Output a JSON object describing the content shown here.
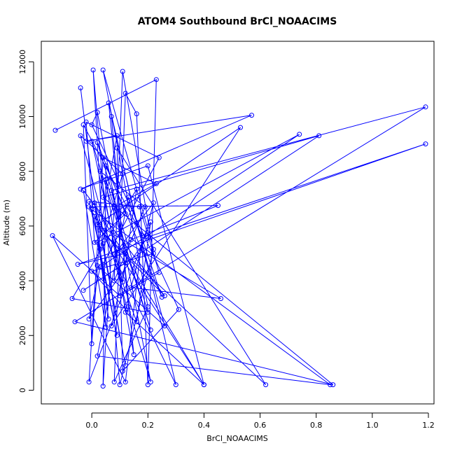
{
  "chart_data": {
    "type": "line",
    "title": "ATOM4 Southbound BrCl_NOAACIMS",
    "xlabel": "BrCl_NOAACIMS",
    "ylabel": "Altitude (m)",
    "xlim": [
      -0.18,
      1.22
    ],
    "ylim": [
      -500,
      12750
    ],
    "xticks": [
      0.0,
      0.2,
      0.4,
      0.6,
      0.8,
      1.0,
      1.2
    ],
    "xtick_labels": [
      "0.0",
      "0.2",
      "0.4",
      "0.6",
      "0.8",
      "1.0",
      "1.2"
    ],
    "yticks": [
      0,
      2000,
      4000,
      6000,
      8000,
      10000,
      12000
    ],
    "ytick_labels": [
      "0",
      "2000",
      "4000",
      "6000",
      "8000",
      "10000",
      "12000"
    ],
    "marker": "open-circle",
    "line_color": "#0000ff",
    "grid": false,
    "series": [
      {
        "points": [
          [
            -0.13,
            9500
          ],
          [
            0.23,
            11350
          ],
          [
            0.2,
            200
          ],
          [
            0.16,
            10100
          ],
          [
            0.12,
            10850
          ],
          [
            0.08,
            300
          ],
          [
            0.2,
            3050
          ],
          [
            0.04,
            11700
          ],
          [
            0.22,
            5150
          ],
          [
            0.1,
            200
          ],
          [
            0.005,
            11700
          ],
          [
            0.04,
            5350
          ],
          [
            0.12,
            900
          ],
          [
            0.01,
            6850
          ],
          [
            -0.04,
            11050
          ],
          [
            0.06,
            2600
          ],
          [
            0.01,
            6350
          ],
          [
            0.3,
            200
          ],
          [
            0.07,
            10000
          ],
          [
            0.13,
            3050
          ],
          [
            0.21,
            300
          ],
          [
            0.02,
            10150
          ],
          [
            0.0,
            9700
          ],
          [
            0.31,
            2950
          ],
          [
            0.11,
            700
          ],
          [
            0.09,
            8850
          ],
          [
            0.62,
            200
          ],
          [
            0.03,
            5850
          ],
          [
            0.09,
            9300
          ],
          [
            -0.02,
            9100
          ],
          [
            0.57,
            10050
          ],
          [
            -0.04,
            7350
          ],
          [
            0.2,
            8200
          ],
          [
            0.4,
            200
          ],
          [
            -0.01,
            6700
          ],
          [
            0.45,
            6750
          ],
          [
            0.14,
            5500
          ],
          [
            0.08,
            4950
          ],
          [
            0.22,
            6850
          ],
          [
            0.14,
            3750
          ],
          [
            0.46,
            3350
          ],
          [
            0.02,
            6050
          ],
          [
            0.53,
            9600
          ],
          [
            0.07,
            2350
          ],
          [
            0.12,
            4650
          ],
          [
            -0.03,
            3650
          ],
          [
            0.81,
            9300
          ],
          [
            0.04,
            7050
          ],
          [
            0.86,
            200
          ],
          [
            -0.06,
            2500
          ],
          [
            1.19,
            10350
          ],
          [
            0.07,
            7300
          ],
          [
            0.12,
            5000
          ],
          [
            -0.05,
            4600
          ],
          [
            1.19,
            9000
          ],
          [
            0.2,
            5600
          ],
          [
            -0.01,
            2600
          ],
          [
            0.03,
            4500
          ],
          [
            0.74,
            9350
          ],
          [
            0.02,
            5400
          ],
          [
            0.09,
            2000
          ],
          [
            0.0,
            6600
          ],
          [
            0.85,
            200
          ],
          [
            0.02,
            1250
          ],
          [
            0.13,
            7050
          ],
          [
            0.25,
            3400
          ],
          [
            0.05,
            8200
          ],
          [
            0.04,
            150
          ],
          [
            0.08,
            6700
          ],
          [
            0.23,
            7550
          ],
          [
            0.04,
            8500
          ],
          [
            -0.01,
            300
          ],
          [
            0.21,
            6150
          ],
          [
            0.16,
            2500
          ],
          [
            0.01,
            6750
          ],
          [
            0.4,
            200
          ],
          [
            0.12,
            2850
          ],
          [
            0.05,
            7700
          ],
          [
            0.21,
            2200
          ],
          [
            0.0,
            9100
          ],
          [
            0.11,
            3950
          ],
          [
            0.16,
            7350
          ],
          [
            -0.07,
            3350
          ],
          [
            0.2,
            2850
          ],
          [
            0.02,
            9050
          ],
          [
            0.12,
            6450
          ],
          [
            0.01,
            5400
          ],
          [
            -0.02,
            9800
          ],
          [
            0.24,
            8500
          ],
          [
            0.04,
            4600
          ],
          [
            0.05,
            2300
          ],
          [
            -0.03,
            7300
          ],
          [
            0.26,
            3450
          ],
          [
            0.03,
            5850
          ],
          [
            0.0,
            1700
          ],
          [
            -0.03,
            9700
          ],
          [
            0.18,
            5650
          ],
          [
            0.12,
            300
          ],
          [
            -0.14,
            5650
          ],
          [
            0.1,
            3450
          ],
          [
            0.24,
            4300
          ],
          [
            0.17,
            6700
          ],
          [
            -0.01,
            6900
          ],
          [
            0.03,
            5150
          ],
          [
            0.11,
            7900
          ],
          [
            -0.04,
            9300
          ],
          [
            0.13,
            2850
          ],
          [
            0.0,
            4350
          ],
          [
            0.22,
            5000
          ],
          [
            0.11,
            11650
          ],
          [
            0.08,
            4000
          ],
          [
            0.19,
            6700
          ],
          [
            0.03,
            8000
          ],
          [
            0.15,
            1300
          ],
          [
            0.06,
            10500
          ],
          [
            0.16,
            6100
          ],
          [
            0.26,
            2350
          ],
          [
            0.02,
            4550
          ]
        ]
      }
    ]
  }
}
